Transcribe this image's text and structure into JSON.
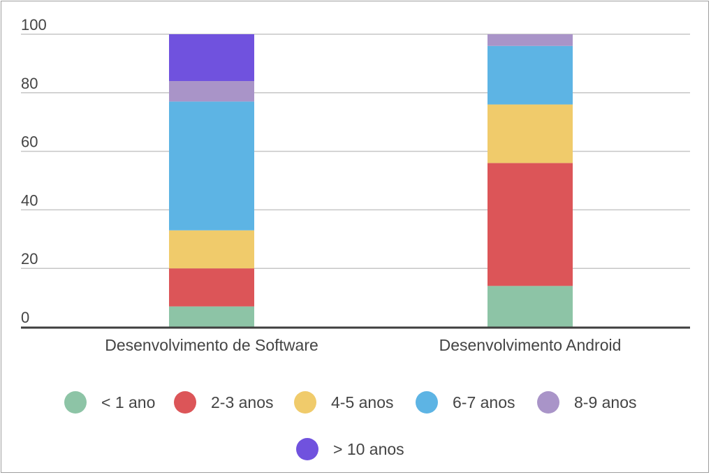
{
  "chart_data": {
    "type": "bar",
    "stacked": true,
    "categories": [
      "Desenvolvimento de Software",
      "Desenvolvimento Android"
    ],
    "ylim": [
      0,
      100
    ],
    "yticks": [
      "0",
      "20",
      "40",
      "60",
      "80",
      "100"
    ],
    "grid": true,
    "legend_position": "bottom",
    "series": [
      {
        "name": "< 1 ano",
        "color": "#8dc4a6",
        "values": [
          7,
          14
        ]
      },
      {
        "name": "2-3 anos",
        "color": "#dc5558",
        "values": [
          13,
          42
        ]
      },
      {
        "name": "4-5 anos",
        "color": "#f0cb6b",
        "values": [
          13,
          20
        ]
      },
      {
        "name": "6-7 anos",
        "color": "#5db4e4",
        "values": [
          44,
          20
        ]
      },
      {
        "name": "8-9 anos",
        "color": "#a994c8",
        "values": [
          7,
          4
        ]
      },
      {
        "name": "> 10 anos",
        "color": "#7052de",
        "values": [
          16,
          0
        ]
      }
    ],
    "colors": {
      "grid": "#c6c6c6",
      "axis": "#3f3f3f",
      "text": "#444444"
    }
  }
}
